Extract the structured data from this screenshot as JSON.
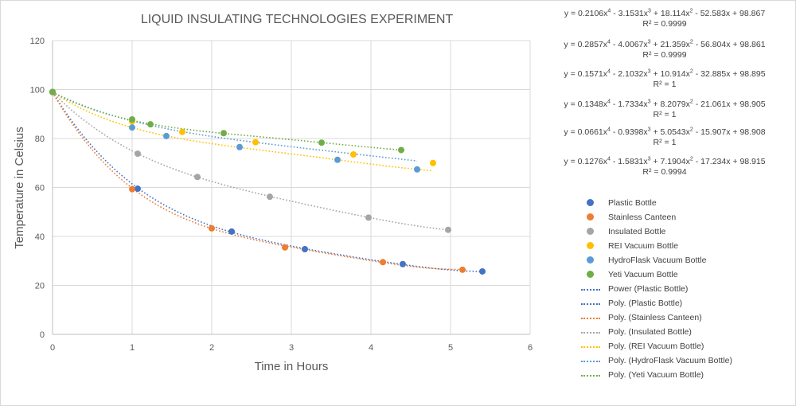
{
  "chart_data": {
    "type": "scatter",
    "title": "LIQUID INSULATING TECHNOLOGIES  EXPERIMENT",
    "xlabel": "Time in Hours",
    "ylabel": "Temperature in Celsius",
    "xlim": [
      0,
      6
    ],
    "ylim": [
      0,
      120
    ],
    "x_ticks": [
      "0",
      "1",
      "2",
      "3",
      "4",
      "5",
      "6"
    ],
    "y_ticks": [
      "0",
      "20",
      "40",
      "60",
      "80",
      "100",
      "120"
    ],
    "grid": true,
    "legend_position": "right",
    "series": [
      {
        "name": "Plastic Bottle",
        "color": "#4472C4",
        "x": [
          0,
          1.07,
          2.25,
          3.17,
          4.4,
          5.4
        ],
        "y": [
          99,
          59.5,
          42,
          34.8,
          28.7,
          25.7
        ]
      },
      {
        "name": "Stainless Canteen",
        "color": "#ED7D31",
        "x": [
          0,
          1.0,
          2.0,
          2.92,
          4.15,
          5.15
        ],
        "y": [
          99,
          59.3,
          43.3,
          35.5,
          29.5,
          26.4
        ]
      },
      {
        "name": "Insulated Bottle",
        "color": "#A5A5A5",
        "x": [
          0,
          1.07,
          1.82,
          2.73,
          3.97,
          4.97
        ],
        "y": [
          99,
          73.8,
          64.3,
          56.2,
          47.7,
          42.7
        ]
      },
      {
        "name": "REI Vacuum Bottle",
        "color": "#FFC000",
        "x": [
          0,
          1.0,
          1.63,
          2.55,
          3.78,
          4.78
        ],
        "y": [
          99,
          87,
          82.7,
          78.5,
          73.5,
          70
        ]
      },
      {
        "name": "HydroFlask Vacuum Bottle",
        "color": "#5B9BD5",
        "x": [
          0,
          1.0,
          1.43,
          2.35,
          3.58,
          4.58
        ],
        "y": [
          99,
          84.5,
          81,
          76.5,
          71.3,
          67.4
        ]
      },
      {
        "name": "Yeti Vacuum Bottle",
        "color": "#70AD47",
        "x": [
          0,
          1.0,
          1.23,
          2.15,
          3.38,
          4.38
        ],
        "y": [
          99,
          87.8,
          85.8,
          82.2,
          78.3,
          75.3
        ]
      }
    ],
    "trendlines": [
      {
        "name": "Power (Plastic Bottle)",
        "color": "#4472C4",
        "type": "power"
      },
      {
        "name": "Poly. (Plastic Bottle)",
        "color": "#4472C4",
        "type": "poly",
        "series": 0,
        "coef": [
          0.2106,
          -3.1531,
          18.114,
          -52.583,
          98.867
        ]
      },
      {
        "name": "Poly. (Stainless Canteen)",
        "color": "#ED7D31",
        "type": "poly",
        "series": 1,
        "coef": [
          0.2857,
          -4.0067,
          21.359,
          -56.804,
          98.861
        ]
      },
      {
        "name": "Poly. (Insulated Bottle)",
        "color": "#A5A5A5",
        "type": "poly",
        "series": 2,
        "coef": [
          0.1571,
          -2.1032,
          10.914,
          -32.885,
          98.895
        ]
      },
      {
        "name": "Poly. (REI Vacuum Bottle)",
        "color": "#FFC000",
        "type": "poly",
        "series": 3,
        "coef": [
          0.1348,
          -1.7334,
          8.2079,
          -21.061,
          98.905
        ]
      },
      {
        "name": "Poly. (HydroFlask Vacuum Bottle)",
        "color": "#5B9BD5",
        "type": "poly",
        "series": 4,
        "coef": [
          0.0661,
          -0.9398,
          5.0543,
          -15.907,
          98.908
        ]
      },
      {
        "name": "Poly. (Yeti Vacuum Bottle)",
        "color": "#70AD47",
        "type": "poly",
        "series": 5,
        "coef": [
          0.1276,
          -1.5831,
          7.1904,
          -17.234,
          98.915
        ]
      }
    ],
    "equations": [
      {
        "a": "y = 0.2106x",
        "b": " - 3.1531x",
        "c": " + 18.114x",
        "d": " - 52.583x + 98.867",
        "r2": "R² = 0.9999"
      },
      {
        "a": "y = 0.2857x",
        "b": " - 4.0067x",
        "c": " + 21.359x",
        "d": " - 56.804x + 98.861",
        "r2": "R² = 0.9999"
      },
      {
        "a": "y = 0.1571x",
        "b": " - 2.1032x",
        "c": " + 10.914x",
        "d": " - 32.885x + 98.895",
        "r2": "R² = 1"
      },
      {
        "a": "y = 0.1348x",
        "b": " - 1.7334x",
        "c": " + 8.2079x",
        "d": " - 21.061x + 98.905",
        "r2": "R² = 1"
      },
      {
        "a": "y = 0.0661x",
        "b": " - 0.9398x",
        "c": " + 5.0543x",
        "d": " - 15.907x + 98.908",
        "r2": "R² = 1"
      },
      {
        "a": "y = 0.1276x",
        "b": " - 1.5831x",
        "c": " + 7.1904x",
        "d": " - 17.234x + 98.915",
        "r2": "R² = 0.9994"
      }
    ],
    "exponents": {
      "four": "4",
      "three": "3",
      "two": "2"
    }
  }
}
